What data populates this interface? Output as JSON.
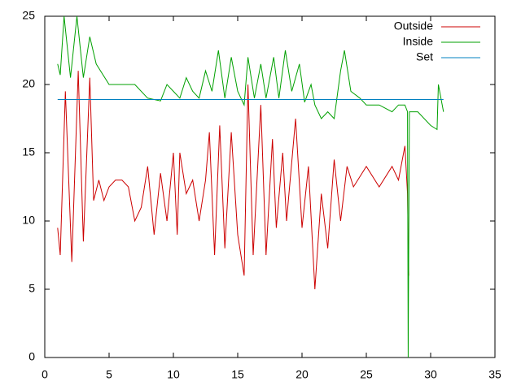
{
  "chart_data": {
    "type": "line",
    "xlim": [
      0,
      35
    ],
    "xticks": [
      0,
      5,
      10,
      15,
      20,
      25,
      30,
      35
    ],
    "ylim": [
      0,
      25
    ],
    "yticks": [
      0,
      5,
      10,
      15,
      20,
      25
    ],
    "legend": "top-right",
    "series": [
      {
        "name": "Outside",
        "color": "#cc0000",
        "x": [
          1,
          1.2,
          1.6,
          2.1,
          2.6,
          3,
          3.5,
          3.8,
          4.2,
          4.6,
          5,
          5.5,
          6,
          6.5,
          7,
          7.5,
          8,
          8.5,
          9,
          9.5,
          10,
          10.3,
          10.5,
          11,
          11.5,
          12,
          12.5,
          12.8,
          13.2,
          13.6,
          14,
          14.5,
          15,
          15.5,
          15.8,
          16.2,
          16.8,
          17.2,
          17.7,
          18,
          18.5,
          18.8,
          19.5,
          20,
          20.5,
          21,
          21.5,
          22,
          22.5,
          23,
          23.5,
          24,
          25,
          26,
          27,
          27.5,
          28,
          28.2,
          28.3
        ],
        "values": [
          9.5,
          7.5,
          19.5,
          7,
          21,
          8.5,
          20.5,
          11.5,
          13,
          11.5,
          12.5,
          13,
          13,
          12.5,
          10,
          11,
          14,
          9,
          13.5,
          10,
          15,
          9,
          15,
          12,
          13,
          10,
          13,
          16.5,
          7.5,
          17,
          8,
          16.5,
          9,
          6,
          20,
          7.5,
          18.5,
          7.5,
          16,
          9.5,
          15,
          10,
          17.5,
          9.5,
          14,
          5,
          12,
          8,
          14.5,
          10,
          14,
          12.5,
          14,
          12.5,
          14,
          13,
          15.5,
          12,
          6
        ]
      },
      {
        "name": "Inside",
        "color": "#00a000",
        "x": [
          1,
          1.2,
          1.5,
          2,
          2.5,
          3,
          3.5,
          4,
          5,
          6,
          7,
          8,
          9,
          9.5,
          10,
          10.5,
          11,
          11.5,
          12,
          12.5,
          13,
          13.5,
          14,
          14.5,
          15,
          15.5,
          15.8,
          16.3,
          16.8,
          17.2,
          17.8,
          18.2,
          18.7,
          19.2,
          19.8,
          20.2,
          20.7,
          21,
          21.5,
          22,
          22.5,
          23,
          23.3,
          23.8,
          24.5,
          25,
          26,
          27,
          27.5,
          28,
          28.2,
          28.25,
          28.35,
          29,
          30,
          30.5,
          30.6,
          31
        ],
        "values": [
          21.5,
          20.7,
          25,
          20.5,
          25,
          20.5,
          23.5,
          21.5,
          20,
          20,
          20,
          19,
          18.8,
          20,
          19.5,
          19,
          20.5,
          19.5,
          19,
          21,
          19.5,
          22.5,
          19,
          22,
          19.5,
          18.5,
          22,
          19,
          21.5,
          19,
          22,
          19,
          22.5,
          19.5,
          21.5,
          18.7,
          20,
          18.5,
          17.5,
          18,
          17.5,
          21,
          22.5,
          19.5,
          19,
          18.5,
          18.5,
          18,
          18.5,
          18.5,
          18,
          0,
          18,
          18,
          17,
          16.7,
          20,
          18
        ]
      },
      {
        "name": "Set",
        "color": "#0080c0",
        "x": [
          1,
          31
        ],
        "values": [
          18.9,
          18.9
        ]
      }
    ]
  }
}
